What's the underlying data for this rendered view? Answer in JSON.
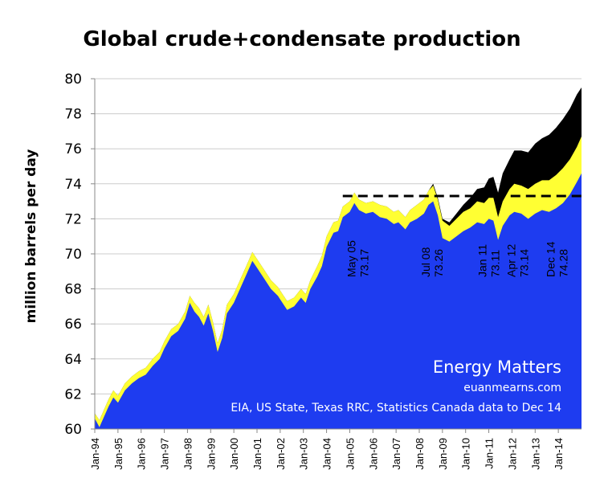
{
  "chart_data": {
    "type": "area",
    "title": "Global crude+condensate production",
    "ylabel": "million barrels per day",
    "xlabel": "",
    "ylim": [
      60,
      80
    ],
    "yticks": [
      "60",
      "62",
      "64",
      "66",
      "68",
      "70",
      "72",
      "74",
      "76",
      "78",
      "80"
    ],
    "x_tick_labels": [
      "Jan-94",
      "Jan-95",
      "Jan-96",
      "Jan-97",
      "Jan-98",
      "Jan-99",
      "Jan-00",
      "Jan-01",
      "Jan-02",
      "Jan-03",
      "Jan-04",
      "Jan-05",
      "Jan-06",
      "Jan-07",
      "Jan-08",
      "Jan-09",
      "Jan-10",
      "Jan-11",
      "Jan-12",
      "Jan-13",
      "Jan-14"
    ],
    "x_range": [
      1994.0,
      2015.0
    ],
    "series": [
      {
        "color": "#1e3cf0",
        "points": [
          [
            1994.0,
            60.6
          ],
          [
            1994.2,
            60.1
          ],
          [
            1994.4,
            60.7
          ],
          [
            1994.6,
            61.3
          ],
          [
            1994.8,
            61.8
          ],
          [
            1995.0,
            61.5
          ],
          [
            1995.3,
            62.2
          ],
          [
            1995.6,
            62.6
          ],
          [
            1995.9,
            62.9
          ],
          [
            1996.2,
            63.1
          ],
          [
            1996.5,
            63.6
          ],
          [
            1996.8,
            64.0
          ],
          [
            1997.0,
            64.6
          ],
          [
            1997.3,
            65.3
          ],
          [
            1997.6,
            65.6
          ],
          [
            1997.9,
            66.3
          ],
          [
            1998.1,
            67.2
          ],
          [
            1998.3,
            66.7
          ],
          [
            1998.5,
            66.4
          ],
          [
            1998.7,
            65.9
          ],
          [
            1998.9,
            66.6
          ],
          [
            1999.1,
            65.6
          ],
          [
            1999.3,
            64.4
          ],
          [
            1999.5,
            65.2
          ],
          [
            1999.7,
            66.6
          ],
          [
            2000.0,
            67.2
          ],
          [
            2000.3,
            68.1
          ],
          [
            2000.6,
            69.0
          ],
          [
            2000.8,
            69.6
          ],
          [
            2001.0,
            69.2
          ],
          [
            2001.3,
            68.6
          ],
          [
            2001.6,
            68.0
          ],
          [
            2001.9,
            67.6
          ],
          [
            2002.1,
            67.2
          ],
          [
            2002.3,
            66.8
          ],
          [
            2002.6,
            67.0
          ],
          [
            2002.9,
            67.5
          ],
          [
            2003.1,
            67.2
          ],
          [
            2003.3,
            68.0
          ],
          [
            2003.6,
            68.7
          ],
          [
            2003.8,
            69.3
          ],
          [
            2004.0,
            70.4
          ],
          [
            2004.3,
            71.2
          ],
          [
            2004.5,
            71.3
          ],
          [
            2004.7,
            72.1
          ],
          [
            2005.0,
            72.4
          ],
          [
            2005.2,
            72.9
          ],
          [
            2005.4,
            72.5
          ],
          [
            2005.7,
            72.3
          ],
          [
            2006.0,
            72.4
          ],
          [
            2006.3,
            72.1
          ],
          [
            2006.6,
            72.0
          ],
          [
            2006.9,
            71.7
          ],
          [
            2007.1,
            71.8
          ],
          [
            2007.4,
            71.4
          ],
          [
            2007.6,
            71.8
          ],
          [
            2007.9,
            72.0
          ],
          [
            2008.2,
            72.3
          ],
          [
            2008.4,
            72.8
          ],
          [
            2008.6,
            73.0
          ],
          [
            2008.8,
            72.2
          ],
          [
            2009.0,
            70.9
          ],
          [
            2009.3,
            70.7
          ],
          [
            2009.6,
            71.0
          ],
          [
            2009.9,
            71.3
          ],
          [
            2010.2,
            71.5
          ],
          [
            2010.5,
            71.8
          ],
          [
            2010.8,
            71.7
          ],
          [
            2011.0,
            72.0
          ],
          [
            2011.2,
            71.9
          ],
          [
            2011.4,
            70.8
          ],
          [
            2011.6,
            71.6
          ],
          [
            2011.9,
            72.2
          ],
          [
            2012.1,
            72.4
          ],
          [
            2012.4,
            72.3
          ],
          [
            2012.7,
            72.0
          ],
          [
            2013.0,
            72.3
          ],
          [
            2013.3,
            72.5
          ],
          [
            2013.6,
            72.4
          ],
          [
            2013.9,
            72.6
          ],
          [
            2014.2,
            72.9
          ],
          [
            2014.5,
            73.4
          ],
          [
            2014.8,
            74.1
          ],
          [
            2015.0,
            74.6
          ]
        ]
      },
      {
        "color": "#ffff33",
        "points": [
          [
            1994.0,
            60.9
          ],
          [
            1994.2,
            60.5
          ],
          [
            1994.4,
            61.1
          ],
          [
            1994.6,
            61.7
          ],
          [
            1994.8,
            62.2
          ],
          [
            1995.0,
            61.9
          ],
          [
            1995.3,
            62.6
          ],
          [
            1995.6,
            63.0
          ],
          [
            1995.9,
            63.3
          ],
          [
            1996.2,
            63.5
          ],
          [
            1996.5,
            64.0
          ],
          [
            1996.8,
            64.4
          ],
          [
            1997.0,
            65.0
          ],
          [
            1997.3,
            65.7
          ],
          [
            1997.6,
            66.0
          ],
          [
            1997.9,
            66.7
          ],
          [
            1998.1,
            67.6
          ],
          [
            1998.3,
            67.2
          ],
          [
            1998.5,
            66.9
          ],
          [
            1998.7,
            66.4
          ],
          [
            1998.9,
            67.1
          ],
          [
            1999.1,
            66.1
          ],
          [
            1999.3,
            64.9
          ],
          [
            1999.5,
            65.7
          ],
          [
            1999.7,
            67.1
          ],
          [
            2000.0,
            67.7
          ],
          [
            2000.3,
            68.6
          ],
          [
            2000.6,
            69.5
          ],
          [
            2000.8,
            70.1
          ],
          [
            2001.0,
            69.7
          ],
          [
            2001.3,
            69.1
          ],
          [
            2001.6,
            68.5
          ],
          [
            2001.9,
            68.1
          ],
          [
            2002.1,
            67.7
          ],
          [
            2002.3,
            67.3
          ],
          [
            2002.6,
            67.5
          ],
          [
            2002.9,
            68.0
          ],
          [
            2003.1,
            67.7
          ],
          [
            2003.3,
            68.5
          ],
          [
            2003.6,
            69.3
          ],
          [
            2003.8,
            69.9
          ],
          [
            2004.0,
            71.0
          ],
          [
            2004.3,
            71.8
          ],
          [
            2004.5,
            71.9
          ],
          [
            2004.7,
            72.7
          ],
          [
            2005.0,
            73.0
          ],
          [
            2005.2,
            73.5
          ],
          [
            2005.4,
            73.1
          ],
          [
            2005.7,
            72.9
          ],
          [
            2006.0,
            73.0
          ],
          [
            2006.3,
            72.8
          ],
          [
            2006.6,
            72.7
          ],
          [
            2006.9,
            72.4
          ],
          [
            2007.1,
            72.5
          ],
          [
            2007.4,
            72.1
          ],
          [
            2007.6,
            72.5
          ],
          [
            2007.9,
            72.8
          ],
          [
            2008.2,
            73.1
          ],
          [
            2008.4,
            73.6
          ],
          [
            2008.6,
            73.9
          ],
          [
            2008.8,
            73.1
          ],
          [
            2009.0,
            71.9
          ],
          [
            2009.3,
            71.6
          ],
          [
            2009.6,
            72.0
          ],
          [
            2009.9,
            72.4
          ],
          [
            2010.2,
            72.6
          ],
          [
            2010.5,
            73.0
          ],
          [
            2010.8,
            72.9
          ],
          [
            2011.0,
            73.2
          ],
          [
            2011.2,
            73.2
          ],
          [
            2011.4,
            72.1
          ],
          [
            2011.6,
            73.0
          ],
          [
            2011.9,
            73.7
          ],
          [
            2012.1,
            74.0
          ],
          [
            2012.4,
            73.9
          ],
          [
            2012.7,
            73.7
          ],
          [
            2013.0,
            74.0
          ],
          [
            2013.3,
            74.2
          ],
          [
            2013.6,
            74.2
          ],
          [
            2013.9,
            74.5
          ],
          [
            2014.2,
            74.9
          ],
          [
            2014.5,
            75.4
          ],
          [
            2014.8,
            76.1
          ],
          [
            2015.0,
            76.7
          ]
        ]
      },
      {
        "color": "#000000",
        "points": [
          [
            1994.0,
            60.9
          ],
          [
            1994.2,
            60.5
          ],
          [
            1994.4,
            61.1
          ],
          [
            1994.6,
            61.7
          ],
          [
            1994.8,
            62.2
          ],
          [
            1995.0,
            61.9
          ],
          [
            1995.3,
            62.6
          ],
          [
            1995.6,
            63.0
          ],
          [
            1995.9,
            63.3
          ],
          [
            1996.2,
            63.5
          ],
          [
            1996.5,
            64.0
          ],
          [
            1996.8,
            64.4
          ],
          [
            1997.0,
            65.0
          ],
          [
            1997.3,
            65.7
          ],
          [
            1997.6,
            66.0
          ],
          [
            1997.9,
            66.7
          ],
          [
            1998.1,
            67.6
          ],
          [
            1998.3,
            67.2
          ],
          [
            1998.5,
            66.9
          ],
          [
            1998.7,
            66.4
          ],
          [
            1998.9,
            67.1
          ],
          [
            1999.1,
            66.1
          ],
          [
            1999.3,
            64.9
          ],
          [
            1999.5,
            65.7
          ],
          [
            1999.7,
            67.1
          ],
          [
            2000.0,
            67.7
          ],
          [
            2000.3,
            68.6
          ],
          [
            2000.6,
            69.5
          ],
          [
            2000.8,
            70.1
          ],
          [
            2001.0,
            69.7
          ],
          [
            2001.3,
            69.1
          ],
          [
            2001.6,
            68.5
          ],
          [
            2001.9,
            68.1
          ],
          [
            2002.1,
            67.7
          ],
          [
            2002.3,
            67.3
          ],
          [
            2002.6,
            67.5
          ],
          [
            2002.9,
            68.0
          ],
          [
            2003.1,
            67.7
          ],
          [
            2003.3,
            68.5
          ],
          [
            2003.6,
            69.3
          ],
          [
            2003.8,
            69.9
          ],
          [
            2004.0,
            71.0
          ],
          [
            2004.3,
            71.8
          ],
          [
            2004.5,
            71.9
          ],
          [
            2004.7,
            72.7
          ],
          [
            2005.0,
            73.0
          ],
          [
            2005.2,
            73.5
          ],
          [
            2005.4,
            73.1
          ],
          [
            2005.7,
            72.9
          ],
          [
            2006.0,
            73.0
          ],
          [
            2006.3,
            72.8
          ],
          [
            2006.6,
            72.7
          ],
          [
            2006.9,
            72.4
          ],
          [
            2007.1,
            72.5
          ],
          [
            2007.4,
            72.1
          ],
          [
            2007.6,
            72.5
          ],
          [
            2007.9,
            72.8
          ],
          [
            2008.2,
            73.1
          ],
          [
            2008.4,
            73.6
          ],
          [
            2008.6,
            74.0
          ],
          [
            2008.8,
            73.2
          ],
          [
            2009.0,
            72.0
          ],
          [
            2009.3,
            71.8
          ],
          [
            2009.6,
            72.3
          ],
          [
            2009.9,
            72.8
          ],
          [
            2010.2,
            73.2
          ],
          [
            2010.5,
            73.7
          ],
          [
            2010.8,
            73.8
          ],
          [
            2011.0,
            74.3
          ],
          [
            2011.2,
            74.4
          ],
          [
            2011.4,
            73.5
          ],
          [
            2011.6,
            74.6
          ],
          [
            2011.9,
            75.4
          ],
          [
            2012.1,
            75.9
          ],
          [
            2012.4,
            75.9
          ],
          [
            2012.7,
            75.8
          ],
          [
            2013.0,
            76.3
          ],
          [
            2013.3,
            76.6
          ],
          [
            2013.6,
            76.8
          ],
          [
            2013.9,
            77.2
          ],
          [
            2014.2,
            77.7
          ],
          [
            2014.5,
            78.3
          ],
          [
            2014.8,
            79.1
          ],
          [
            2015.0,
            79.5
          ]
        ]
      }
    ],
    "reference_line": {
      "x_start": 2004.7,
      "x_end": 2015.0,
      "y": 73.3,
      "style": "dashed",
      "color": "#000000"
    },
    "annotations": [
      {
        "date": "May 05",
        "value": "73.17",
        "x": 2005.35
      },
      {
        "date": "Jul 08",
        "value": "73.26",
        "x": 2008.55
      },
      {
        "date": "Jan 11",
        "value": "73.11",
        "x": 2011.0
      },
      {
        "date": "Apr 12",
        "value": "73.14",
        "x": 2012.25
      },
      {
        "date": "Dec 14",
        "value": "74.28",
        "x": 2013.95
      }
    ],
    "grid": {
      "horizontal": true,
      "vertical": false
    },
    "colors": {
      "blue": "#1e3cf0",
      "yellow": "#ffff33",
      "black": "#000000",
      "grid": "#cccccc"
    }
  },
  "watermark": {
    "brand": "Energy Matters",
    "site": "euanmearns.com",
    "source": "EIA, US State, Texas RRC, Statistics Canada data to Dec 14"
  }
}
